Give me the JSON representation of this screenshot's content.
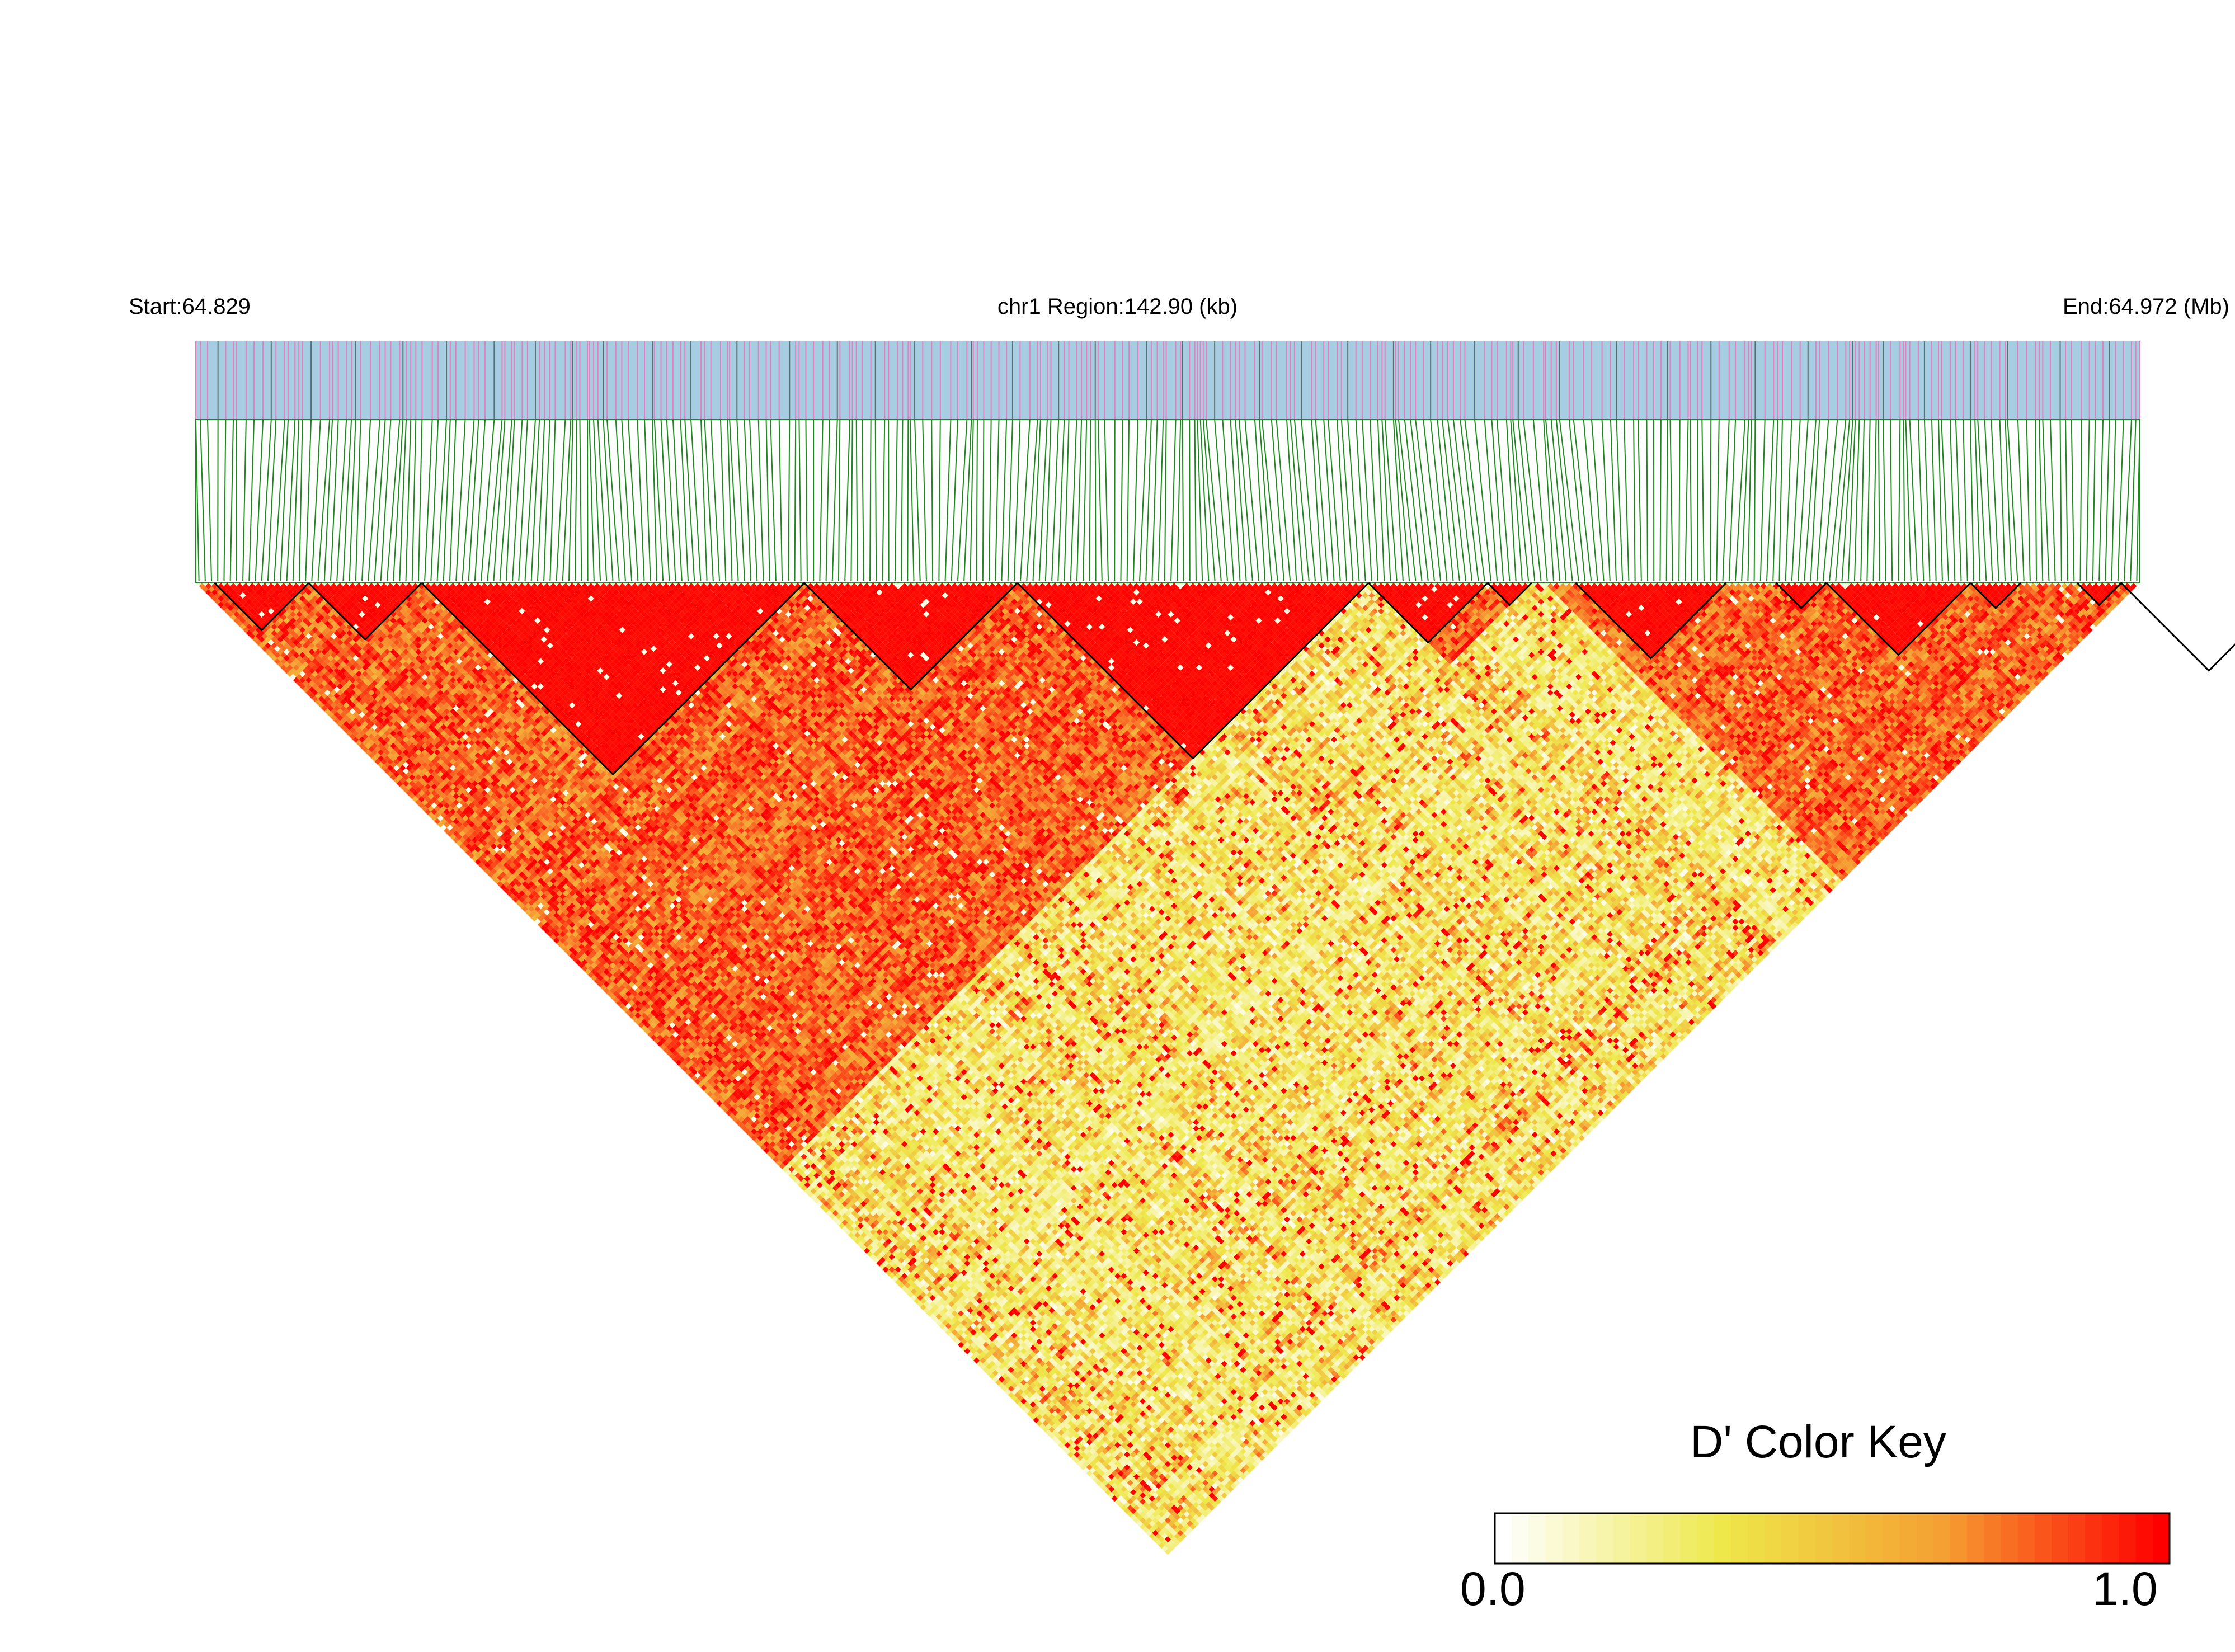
{
  "header": {
    "start_label": "Start:64.829",
    "region_label": "chr1 Region:142.90 (kb)",
    "end_label": "End:64.972 (Mb)"
  },
  "colors": {
    "track_background": "#a6cde2",
    "snp_mark": "#e67fbf",
    "snp_mark_dark": "#5a6f6f",
    "connector_line": "#1a8a1a",
    "ld_low": "#ffffff",
    "ld_mid": "#eee84a",
    "ld_high": "#ff0000",
    "block_outline": "#000000"
  },
  "chart_data": {
    "type": "heatmap",
    "description_type": "LD heatmap (pairwise D')",
    "chromosome": "chr1",
    "region_start_mb": 64.829,
    "region_end_mb": 64.972,
    "region_length_kb": 142.9,
    "snp_count_approx": 310,
    "metric": "D'",
    "value_range": [
      0.0,
      1.0
    ],
    "haplotype_blocks_snp_index_ranges": [
      [
        3,
        17
      ],
      [
        18,
        35
      ],
      [
        36,
        96
      ],
      [
        97,
        130
      ],
      [
        131,
        186
      ],
      [
        187,
        205
      ],
      [
        206,
        212
      ],
      [
        220,
        243
      ],
      [
        252,
        259
      ],
      [
        260,
        282
      ],
      [
        283,
        290
      ],
      [
        300,
        306
      ],
      [
        307,
        334
      ],
      [
        335,
        343
      ]
    ],
    "high_ld_regions_snp_index_ranges": [
      [
        0,
        186
      ],
      [
        187,
        212
      ],
      [
        215,
        345
      ]
    ],
    "legend": {
      "title": "D' Color Key",
      "min_label": "0.0",
      "max_label": "1.0",
      "colors": [
        "#ffffff",
        "#eee84a",
        "#f5a032",
        "#ff0000"
      ]
    }
  }
}
